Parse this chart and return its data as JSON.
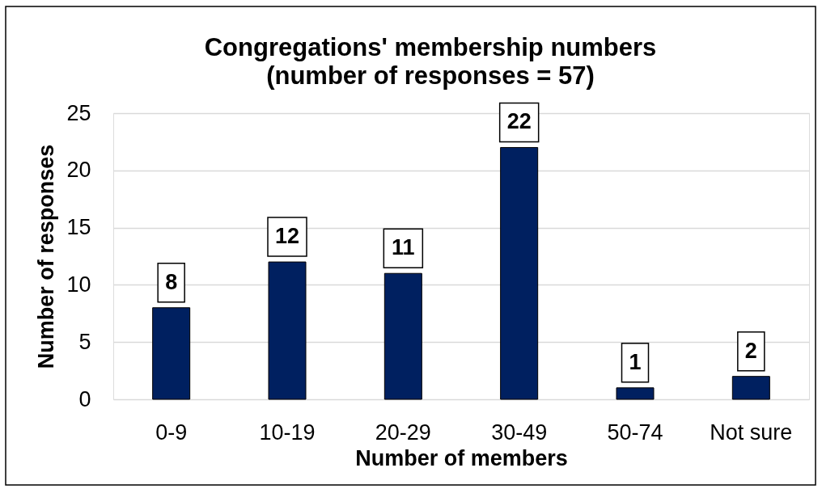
{
  "chart_data": {
    "type": "bar",
    "title": "Congregations' membership numbers",
    "subtitle": "(number of responses = 57)",
    "xlabel": "Number of members",
    "ylabel": "Number of responses",
    "categories": [
      "0-9",
      "10-19",
      "20-29",
      "30-49",
      "50-74",
      "Not sure"
    ],
    "values": [
      8,
      12,
      11,
      22,
      1,
      2
    ],
    "color": "#002060",
    "ylim": [
      0,
      25
    ],
    "yticks": [
      0,
      5,
      10,
      15,
      20,
      25
    ],
    "grid": "y",
    "data_labels": true
  }
}
